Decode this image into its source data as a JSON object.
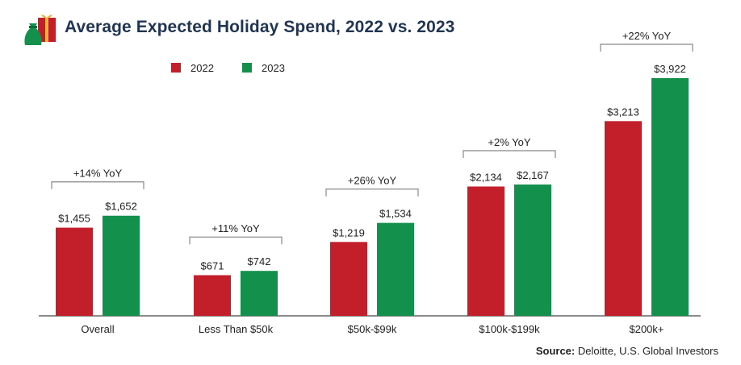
{
  "title": "Average Expected Holiday Spend, 2022 vs. 2023",
  "source": {
    "label": "Source:",
    "text": "Deloitte, U.S. Global Investors"
  },
  "colors": {
    "2022": "#c21f2a",
    "2023": "#14904d",
    "axis": "#666666",
    "bracket": "#888888",
    "title": "#1f3552"
  },
  "icons": {
    "header": "gift-bag-icon"
  },
  "chart_data": {
    "type": "bar",
    "categories": [
      "Overall",
      "Less Than $50k",
      "$50k-$99k",
      "$100k-$199k",
      "$200k+"
    ],
    "series": [
      {
        "name": "2022",
        "values": [
          1455,
          671,
          1219,
          2134,
          3213
        ],
        "labels": [
          "$1,455",
          "$671",
          "$1,219",
          "$2,134",
          "$3,213"
        ]
      },
      {
        "name": "2023",
        "values": [
          1652,
          742,
          1534,
          2167,
          3922
        ],
        "labels": [
          "$1,652",
          "$742",
          "$1,534",
          "$2,167",
          "$3,922"
        ]
      }
    ],
    "annotations": [
      "+14% YoY",
      "+11% YoY",
      "+26% YoY",
      "+2% YoY",
      "+22% YoY"
    ],
    "ylim": [
      0,
      4000
    ],
    "grid": false,
    "legend_position": "top-left",
    "xlabel": "",
    "ylabel": ""
  }
}
